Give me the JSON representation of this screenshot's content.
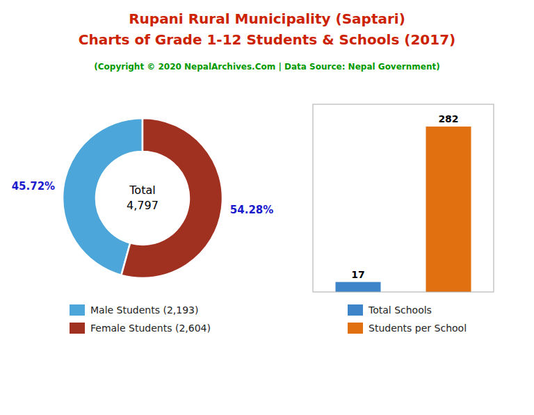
{
  "title": [
    "Rupani Rural Municipality (Saptari)",
    "Charts of Grade 1-12 Students & Schools (2017)"
  ],
  "subtitle": "(Copyright © 2020 NepalArchives.Com | Data Source: Nepal Government)",
  "chart_data": [
    {
      "type": "pie",
      "categories": [
        "Male Students (2,193)",
        "Female Students (2,604)"
      ],
      "values": [
        45.72,
        54.28
      ],
      "value_labels": [
        "45.72%",
        "54.28%"
      ],
      "colors": [
        "#4da6d9",
        "#a03020"
      ],
      "annotations": [
        "Total\n4,797"
      ],
      "data_labels": true,
      "legend": "bottom"
    },
    {
      "type": "bar",
      "categories": [
        "Total Schools",
        "Students per School"
      ],
      "values": [
        17,
        282
      ],
      "colors": [
        "#3d85c8",
        "#e07010"
      ],
      "ylim": [
        0,
        320
      ],
      "tick_labels": false,
      "data_labels": true,
      "legend": "bottom"
    }
  ]
}
